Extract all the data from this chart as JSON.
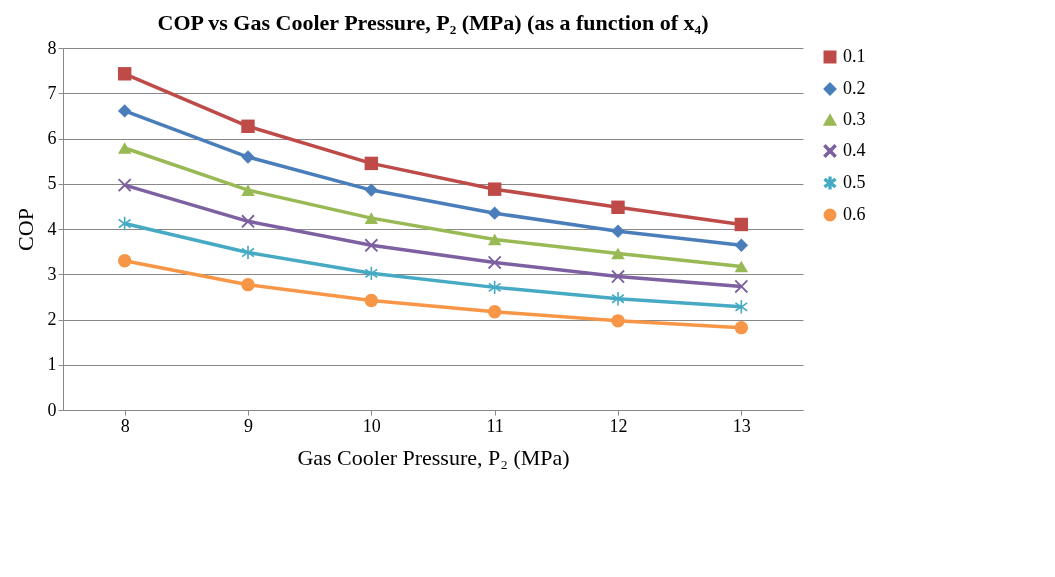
{
  "chart_data": {
    "type": "line",
    "title": "COP vs Gas Cooler Pressure, P₂ (MPa) (as a function of x₄)",
    "xlabel": "Gas Cooler Pressure, P₂ (MPa)",
    "ylabel": "COP",
    "categories": [
      "8",
      "9",
      "10",
      "11",
      "12",
      "13"
    ],
    "ylim": [
      0,
      8
    ],
    "yticks": [
      0,
      1,
      2,
      3,
      4,
      5,
      6,
      7,
      8
    ],
    "grid": "y",
    "legend": "right",
    "series": [
      {
        "name": "0.1",
        "color": "#be4b48",
        "marker": "square",
        "values": [
          7.43,
          6.27,
          5.45,
          4.88,
          4.48,
          4.1
        ]
      },
      {
        "name": "0.2",
        "color": "#4a7ebb",
        "marker": "diamond",
        "values": [
          6.61,
          5.59,
          4.86,
          4.35,
          3.95,
          3.64
        ]
      },
      {
        "name": "0.3",
        "color": "#98b954",
        "marker": "triangle",
        "values": [
          5.79,
          4.86,
          4.24,
          3.77,
          3.46,
          3.17
        ]
      },
      {
        "name": "0.4",
        "color": "#7d60a0",
        "marker": "cross",
        "values": [
          4.97,
          4.17,
          3.64,
          3.26,
          2.95,
          2.73
        ]
      },
      {
        "name": "0.5",
        "color": "#46aac5",
        "marker": "star",
        "values": [
          4.12,
          3.48,
          3.02,
          2.71,
          2.46,
          2.28
        ]
      },
      {
        "name": "0.6",
        "color": "#f79646",
        "marker": "circle",
        "values": [
          3.3,
          2.77,
          2.42,
          2.17,
          1.97,
          1.82
        ]
      }
    ]
  }
}
